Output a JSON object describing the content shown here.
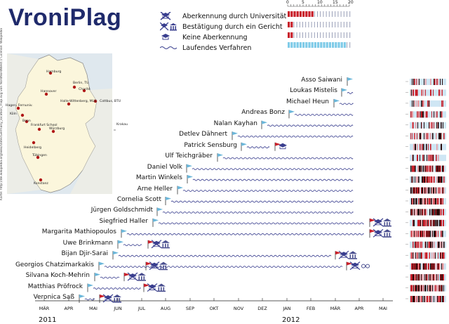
{
  "title": "VroniPlag",
  "legend": [
    {
      "icon": "crossed-hat-icon",
      "label": "Aberkennung durch Universität"
    },
    {
      "icon": "court-building-icon",
      "label": "Bestätigung durch ein Gericht"
    },
    {
      "icon": "hat-icon",
      "label": "Keine Aberkennung"
    },
    {
      "icon": "wave-icon",
      "label": "Laufendes Verfahren"
    }
  ],
  "scale_ticks": [
    "0",
    "5",
    "10",
    "15",
    "20"
  ],
  "map": {
    "credit": "Karte: http://de.wikipedia.org/wiki/Datei:Germany_location_map.svg von NordNordWest // License: Wikipedia",
    "cities": [
      "Hamburg",
      "Berlin, TU",
      "Charité",
      "Hannover",
      "Halle-Wittenberg, MLU",
      "Cottbus, BTU",
      "Hagen, Fernuniv.",
      "Köln",
      "Bonn",
      "Frankfurt School",
      "Würzburg",
      "Heidelberg",
      "Tübingen",
      "Konstanz",
      "Krakau"
    ]
  },
  "people": [
    "Asso Saiwani",
    "Loukas Mistelis",
    "Michael Heun",
    "Andreas Bonz",
    "Nalan Kayhan",
    "Detlev Dähnert",
    "Patrick Sensburg",
    "Ulf Teichgräber",
    "Daniel Volk",
    "Martin Winkels",
    "Arne Heller",
    "Cornelia Scott",
    "Jürgen Goldschmidt",
    "Siegfried Haller",
    "Margarita Mathiopoulos",
    "Uwe Brinkmann",
    "Bijan Djir-Sarai",
    "Georgios Chatzimarkakis",
    "Silvana Koch-Mehrin",
    "Matthias Pröfrock",
    "Veronica Saß"
  ],
  "months": [
    "MÄR",
    "APR",
    "MAI",
    "JUN",
    "JUL",
    "AUG",
    "SEP",
    "OKT",
    "NOV",
    "DEZ",
    "JAN",
    "FEB",
    "MÄR",
    "APR",
    "MAI"
  ],
  "years": [
    "2011",
    "2012"
  ],
  "colors": {
    "title": "#1f2a6b",
    "flag": "#6bb6d9",
    "red_flag": "#c8202a",
    "wave": "#3a3f8f",
    "court": "#4a4f8f"
  }
}
